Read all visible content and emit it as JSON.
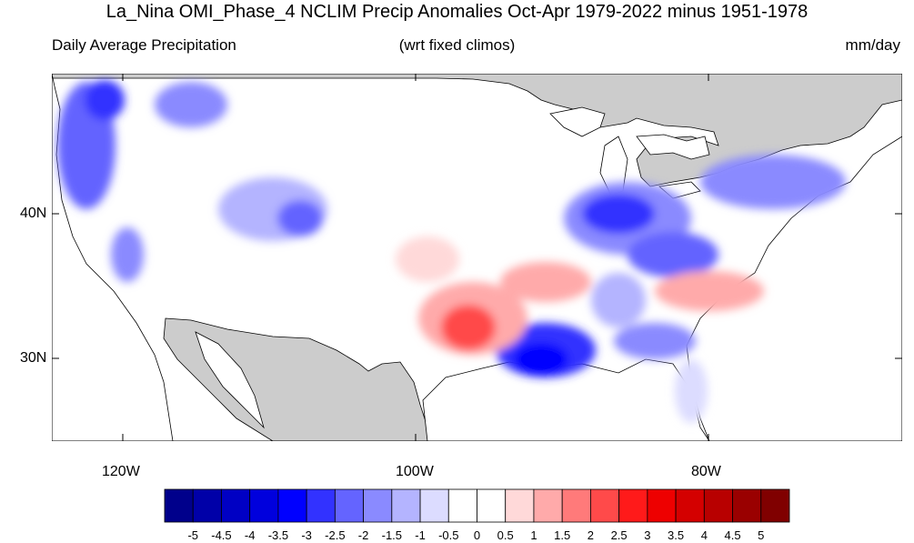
{
  "title": "La_Nina OMI_Phase_4 NCLIM Precip Anomalies Oct-Apr 1979-2022 minus 1951-1978",
  "subtitle_left": "Daily Average Precipitation",
  "subtitle_center": "(wrt fixed climos)",
  "subtitle_right": "mm/day",
  "axes": {
    "lat_labels": [
      "40N",
      "30N"
    ],
    "lon_labels": [
      "120W",
      "100W",
      "80W"
    ]
  },
  "colorbar": {
    "labels": [
      "-5",
      "-4.5",
      "-4",
      "-3.5",
      "-3",
      "-2.5",
      "-2",
      "-1.5",
      "-1",
      "-0.5",
      "0",
      "0.5",
      "1",
      "1.5",
      "2",
      "2.5",
      "3",
      "3.5",
      "4",
      "4.5",
      "5"
    ],
    "colors": [
      "#00008b",
      "#0000a8",
      "#0000c4",
      "#0000dd",
      "#0000ff",
      "#3232ff",
      "#6464ff",
      "#8a8aff",
      "#b4b4ff",
      "#dcdcff",
      "#ffffff",
      "#ffffff",
      "#ffd9d9",
      "#ffaaaa",
      "#ff7a7a",
      "#ff4a4a",
      "#ff1a1a",
      "#ee0000",
      "#d40000",
      "#b80000",
      "#9a0000",
      "#800000"
    ]
  },
  "colors": {
    "land_masked": "#cccccc",
    "coast": "#000000"
  }
}
